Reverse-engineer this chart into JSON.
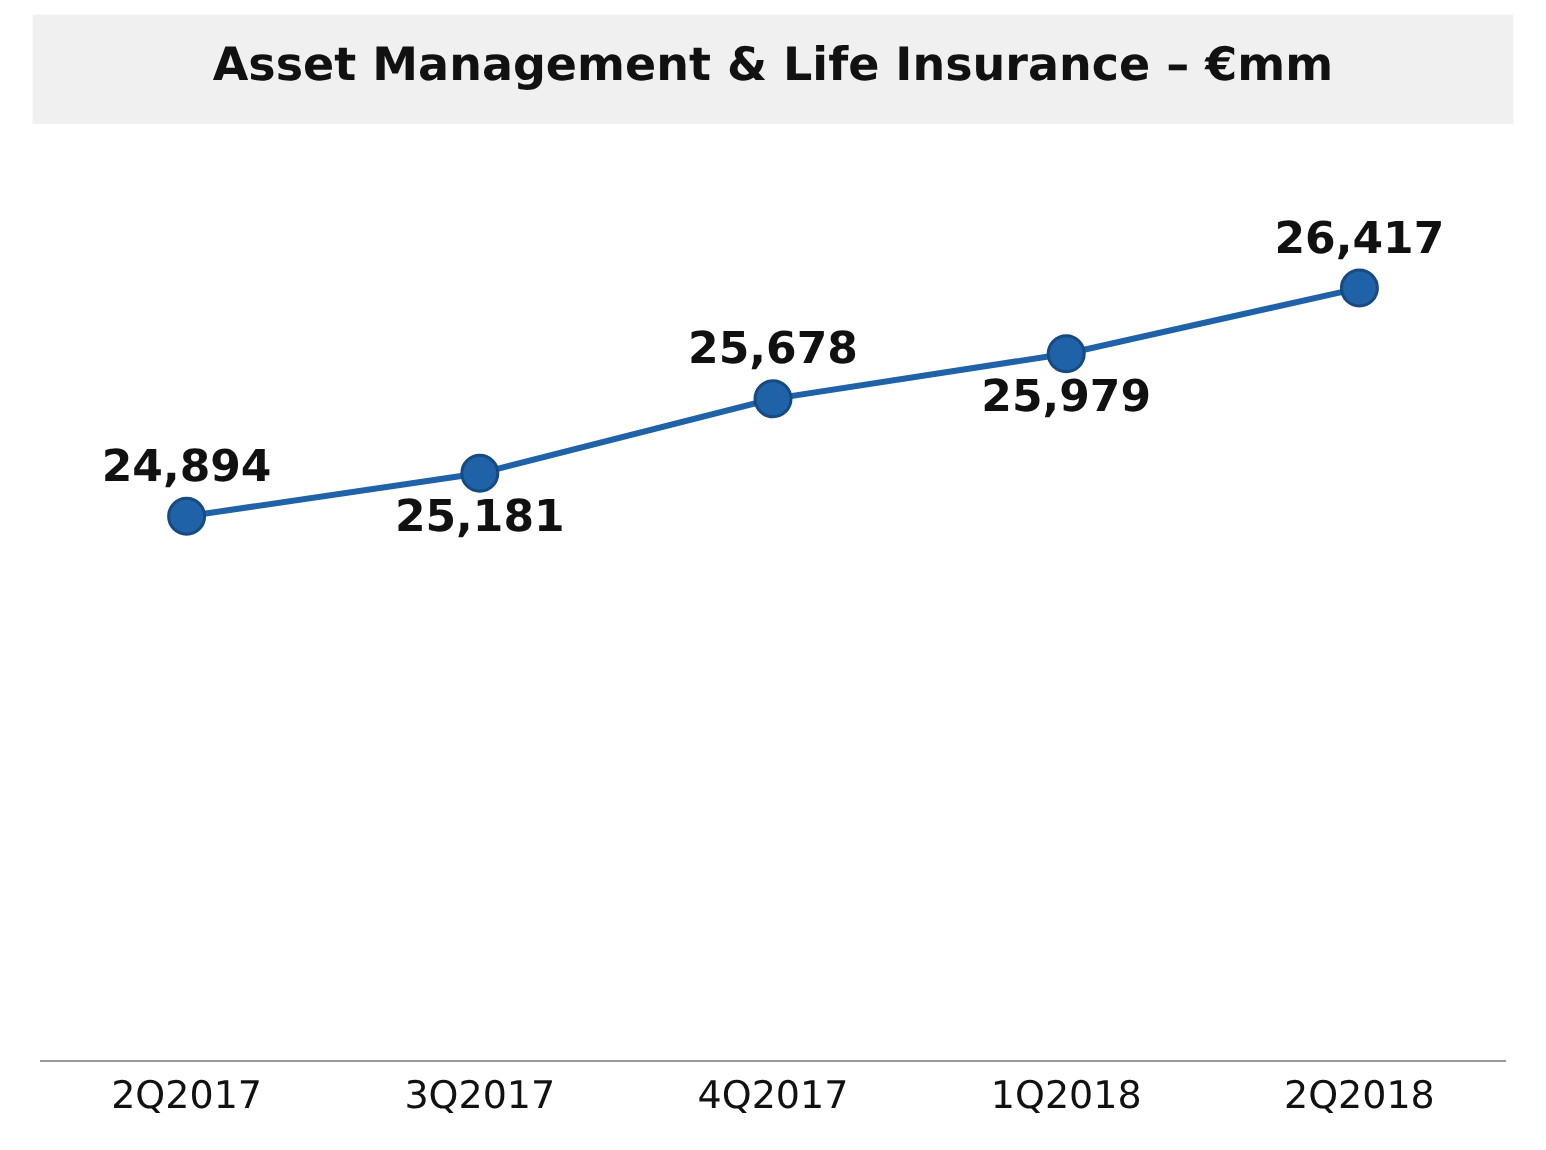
{
  "chart_data": {
    "type": "line",
    "title": "Asset Management & Life Insurance – €mm",
    "categories": [
      "2Q2017",
      "3Q2017",
      "4Q2017",
      "1Q2018",
      "2Q2018"
    ],
    "series": [
      {
        "color": "#1f62a8",
        "values": [
          24894,
          25181,
          25678,
          25979,
          26417
        ],
        "value_labels": [
          "24,894",
          "25,181",
          "25,678",
          "25,979",
          "26,417"
        ]
      }
    ],
    "marker": "circle",
    "line_style": "solid"
  }
}
